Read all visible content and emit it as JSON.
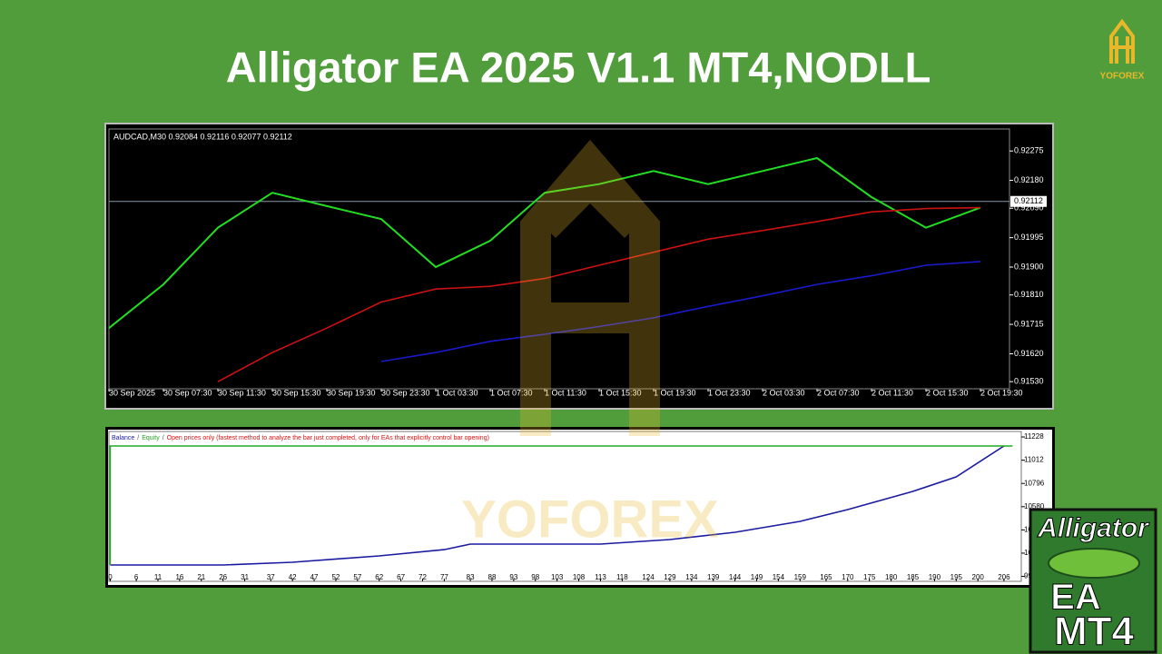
{
  "title": "Alligator EA 2025 V1.1 MT4,NODLL",
  "logo_text": "YOFOREX",
  "watermark": "YOFOREX",
  "badge": {
    "line1": "Alligator",
    "line2": "EA",
    "line3": "MT4"
  },
  "chart_data": [
    {
      "type": "line",
      "info": "AUDCAD,M30  0.92084 0.92116 0.92077 0.92112",
      "last_price": 0.92112,
      "categories": [
        "30 Sep 2025",
        "30 Sep 07:30",
        "30 Sep 11:30",
        "30 Sep 15:30",
        "30 Sep 19:30",
        "30 Sep 23:30",
        "1 Oct 03:30",
        "1 Oct 07:30",
        "1 Oct 11:30",
        "1 Oct 15:30",
        "1 Oct 19:30",
        "1 Oct 23:30",
        "2 Oct 03:30",
        "2 Oct 07:30",
        "2 Oct 11:30",
        "2 Oct 15:30",
        "2 Oct 19:30"
      ],
      "series": [
        {
          "color": "#22dd22",
          "values": [
            0.91703,
            0.91844,
            0.92027,
            0.9214,
            0.92097,
            0.92055,
            0.919,
            0.91985,
            0.9214,
            0.92168,
            0.9221,
            0.92168,
            0.9221,
            0.92252,
            0.92126,
            0.92027,
            0.92092
          ]
        },
        {
          "color": "#cc1111",
          "values": [
            null,
            null,
            0.9153,
            0.91624,
            0.91703,
            0.91787,
            0.91829,
            0.91838,
            0.91863,
            0.91906,
            0.91948,
            0.9199,
            0.92018,
            0.92047,
            0.92078,
            0.92089,
            0.92092
          ]
        },
        {
          "color": "#1a1acc",
          "values": [
            null,
            null,
            null,
            null,
            null,
            0.91595,
            0.91624,
            0.9166,
            0.91683,
            0.91708,
            0.91736,
            0.91773,
            0.91807,
            0.91844,
            0.91872,
            0.91906,
            0.91918
          ]
        }
      ],
      "ylim": [
        0.91507,
        0.92343
      ],
      "yticks": [
        0.92275,
        {
          "value": 0.9218,
          "label": "0.92180"
        },
        {
          "value": 0.9209,
          "label": "0.92090"
        },
        0.91995,
        {
          "value": 0.919,
          "label": "0.91900"
        },
        {
          "value": 0.9181,
          "label": "0.91810"
        },
        0.91715,
        {
          "value": 0.9162,
          "label": "0.91620"
        },
        {
          "value": 0.9153,
          "label": "0.91530"
        }
      ],
      "grid": false
    },
    {
      "type": "line",
      "model": "Open prices only (fastest method to analyze the bar just completed, only for EAs that explicitly control bar opening)",
      "legend_separator": "/",
      "series": [
        {
          "name": "Balance",
          "color": "#1a1aa0",
          "x": [
            0,
            26,
            42,
            62,
            77,
            83,
            113,
            129,
            144,
            159,
            170,
            185,
            195,
            206
          ],
          "values": [
            10038,
            10038,
            10063,
            10122,
            10181,
            10232,
            10232,
            10274,
            10342,
            10443,
            10553,
            10722,
            10857,
            11144
          ]
        },
        {
          "name": "Equity",
          "color": "#22aa22",
          "x": [
            0,
            0,
            208
          ],
          "values": [
            10038,
            11144,
            11144
          ]
        }
      ],
      "xlim": [
        -0.3,
        210
      ],
      "xticks": [
        0,
        6,
        11,
        16,
        21,
        26,
        31,
        37,
        42,
        47,
        52,
        57,
        62,
        67,
        72,
        77,
        83,
        88,
        93,
        98,
        103,
        108,
        113,
        118,
        124,
        129,
        134,
        139,
        144,
        149,
        154,
        159,
        165,
        170,
        175,
        180,
        185,
        190,
        195,
        200,
        206
      ],
      "ylim": [
        9886,
        11279
      ],
      "yticks": [
        11228,
        11012,
        10796,
        10580,
        10364,
        10148,
        9932
      ],
      "grid": false
    }
  ]
}
